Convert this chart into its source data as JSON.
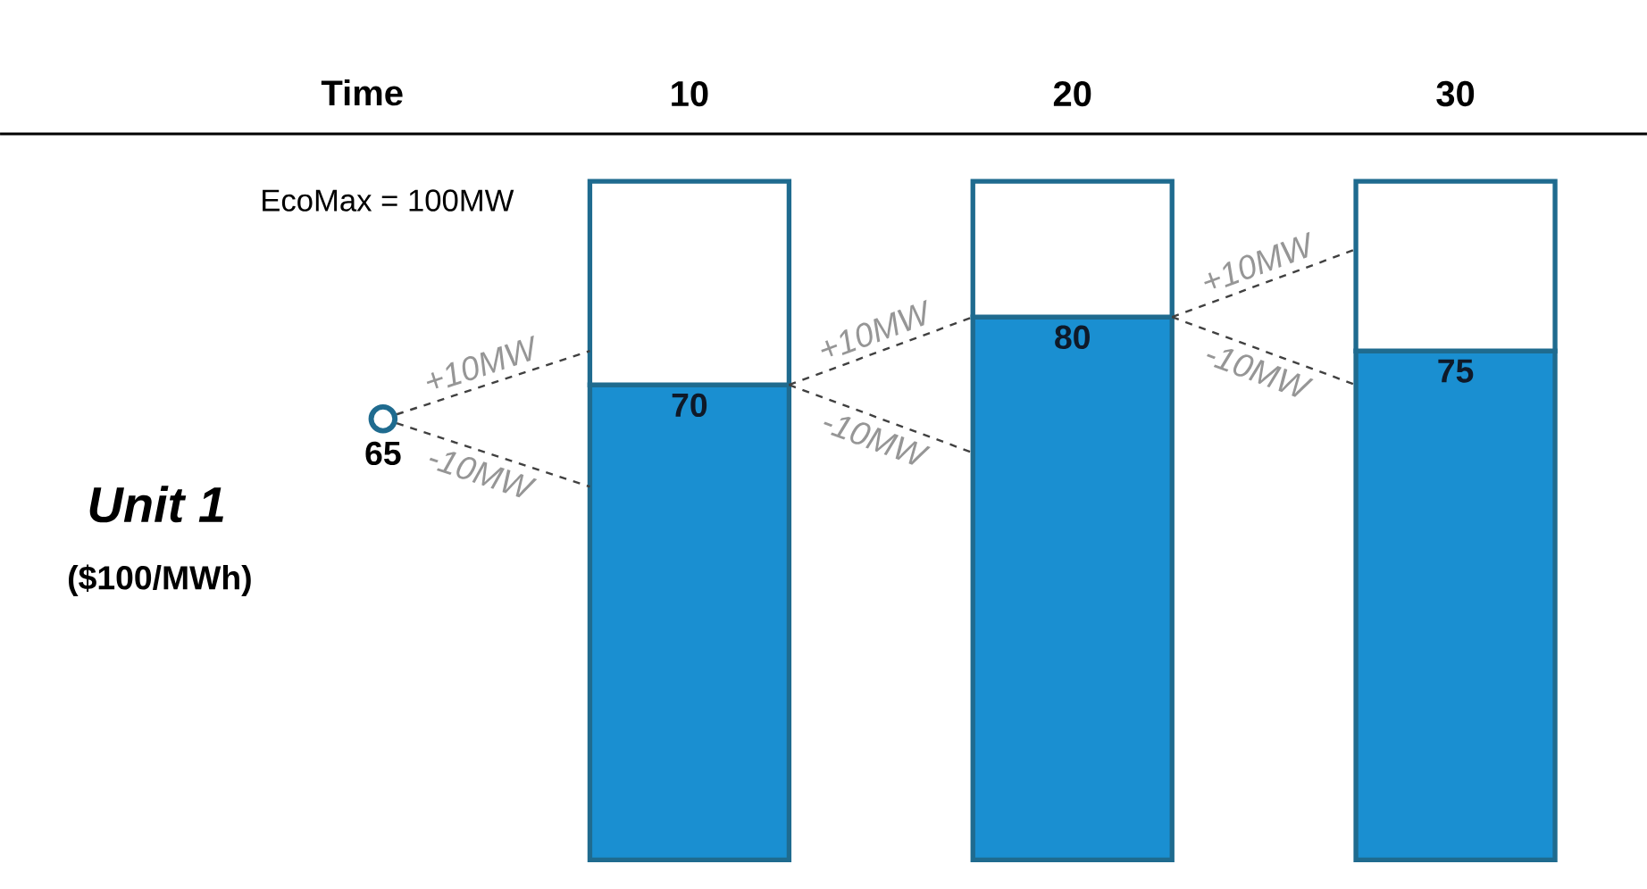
{
  "chart_data": {
    "type": "bar",
    "stacked": true,
    "xlabel": "Time",
    "ylabel": "Unit 1",
    "x": [
      10,
      20,
      30
    ],
    "xlim": [
      -8,
      35
    ],
    "xticks": [
      10,
      20,
      30
    ],
    "ylim": [
      0,
      107
    ],
    "tick_labels": "x",
    "series": [
      {
        "color": "#1a8fd1",
        "values": [
          70,
          80,
          75
        ],
        "value_labels": [
          "70",
          "80",
          "75"
        ]
      },
      {
        "color": "#ffffff",
        "values": [
          30,
          20,
          25
        ]
      },
      {
        "type": "scatter",
        "marker": "circle",
        "color": "#1f6b8f",
        "x": [
          2
        ],
        "values": [
          65
        ],
        "value_labels": [
          "65"
        ]
      },
      {
        "type": "line",
        "line_style": "dashed",
        "color": "#404040",
        "name": "+10MW",
        "x": [
          2,
          7.4
        ],
        "values": [
          65,
          75
        ]
      },
      {
        "type": "line",
        "line_style": "dashed",
        "color": "#404040",
        "name": "-10MW",
        "x": [
          2,
          7.4
        ],
        "values": [
          65,
          55
        ]
      },
      {
        "type": "line",
        "line_style": "dashed",
        "color": "#404040",
        "name": "+10MW",
        "x": [
          12.6,
          17.4
        ],
        "values": [
          70,
          80
        ]
      },
      {
        "type": "line",
        "line_style": "dashed",
        "color": "#404040",
        "name": "-10MW",
        "x": [
          12.6,
          17.4
        ],
        "values": [
          70,
          60
        ]
      },
      {
        "type": "line",
        "line_style": "dashed",
        "color": "#404040",
        "name": "+10MW",
        "x": [
          22.6,
          27.4
        ],
        "values": [
          80,
          90
        ]
      },
      {
        "type": "line",
        "line_style": "dashed",
        "color": "#404040",
        "name": "-10MW",
        "x": [
          22.6,
          27.4
        ],
        "values": [
          80,
          70
        ]
      }
    ],
    "annotations": [
      "EcoMax = 100MW",
      "($100/MWh)"
    ]
  }
}
